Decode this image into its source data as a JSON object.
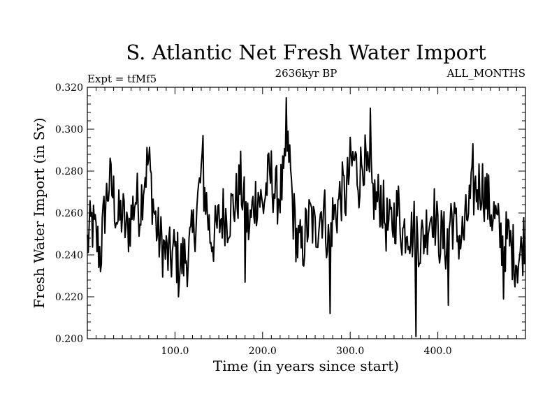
{
  "chart_data": {
    "type": "line",
    "title": "S. Atlantic Net Fresh Water Import",
    "subtitle_left": "Expt = tfMf5",
    "subtitle_center": "2636kyr BP",
    "subtitle_right": "ALL_MONTHS",
    "xlabel": "Time (in years since start)",
    "ylabel": "Fresh Water Import (in Sv)",
    "xlim": [
      0,
      500
    ],
    "ylim": [
      0.2,
      0.32
    ],
    "x_major_ticks": [
      100,
      200,
      300,
      400
    ],
    "x_tick_labels": [
      "100.0",
      "200.0",
      "300.0",
      "400.0"
    ],
    "x_minor_step": 10,
    "y_major_ticks": [
      0.2,
      0.22,
      0.24,
      0.26,
      0.28,
      0.3,
      0.32
    ],
    "y_tick_labels": [
      "0.200",
      "0.220",
      "0.240",
      "0.260",
      "0.280",
      "0.300",
      "0.320"
    ],
    "y_minor_step": 0.004,
    "grid": false,
    "series": [
      {
        "name": "Fresh Water Import",
        "color": "#000000",
        "x": [
          0,
          5,
          10,
          15,
          20,
          25,
          30,
          35,
          40,
          45,
          50,
          55,
          60,
          65,
          70,
          75,
          80,
          85,
          90,
          95,
          100,
          105,
          110,
          115,
          120,
          125,
          130,
          135,
          140,
          145,
          150,
          155,
          160,
          165,
          170,
          175,
          180,
          185,
          190,
          195,
          200,
          205,
          210,
          215,
          220,
          225,
          230,
          235,
          240,
          245,
          250,
          255,
          260,
          265,
          270,
          275,
          280,
          285,
          290,
          295,
          300,
          305,
          310,
          315,
          320,
          325,
          330,
          335,
          340,
          345,
          350,
          355,
          360,
          365,
          370,
          375,
          380,
          385,
          390,
          395,
          400,
          405,
          410,
          415,
          420,
          425,
          430,
          435,
          440,
          445,
          450,
          455,
          460,
          465,
          470,
          475,
          480,
          485,
          490,
          495,
          499
        ],
        "y": [
          0.245,
          0.255,
          0.248,
          0.24,
          0.262,
          0.275,
          0.268,
          0.256,
          0.26,
          0.25,
          0.258,
          0.268,
          0.262,
          0.278,
          0.285,
          0.265,
          0.25,
          0.245,
          0.24,
          0.238,
          0.242,
          0.235,
          0.238,
          0.24,
          0.248,
          0.262,
          0.278,
          0.268,
          0.25,
          0.248,
          0.255,
          0.26,
          0.258,
          0.262,
          0.266,
          0.275,
          0.26,
          0.252,
          0.265,
          0.27,
          0.262,
          0.274,
          0.278,
          0.268,
          0.27,
          0.276,
          0.29,
          0.26,
          0.245,
          0.242,
          0.252,
          0.258,
          0.25,
          0.26,
          0.262,
          0.246,
          0.258,
          0.262,
          0.27,
          0.268,
          0.282,
          0.285,
          0.276,
          0.288,
          0.275,
          0.27,
          0.265,
          0.268,
          0.256,
          0.252,
          0.258,
          0.262,
          0.25,
          0.256,
          0.25,
          0.255,
          0.245,
          0.25,
          0.258,
          0.262,
          0.25,
          0.248,
          0.245,
          0.26,
          0.252,
          0.248,
          0.25,
          0.262,
          0.27,
          0.272,
          0.275,
          0.268,
          0.262,
          0.258,
          0.25,
          0.245,
          0.248,
          0.242,
          0.238,
          0.24,
          0.25
        ]
      }
    ],
    "annotations": [
      {
        "x": 104,
        "y": 0.22
      },
      {
        "x": 132,
        "y": 0.297
      },
      {
        "x": 180,
        "y": 0.227
      },
      {
        "x": 227,
        "y": 0.315
      },
      {
        "x": 277,
        "y": 0.212
      },
      {
        "x": 323,
        "y": 0.31
      },
      {
        "x": 375,
        "y": 0.201
      },
      {
        "x": 412,
        "y": 0.216
      },
      {
        "x": 440,
        "y": 0.293
      },
      {
        "x": 475,
        "y": 0.219
      }
    ]
  }
}
